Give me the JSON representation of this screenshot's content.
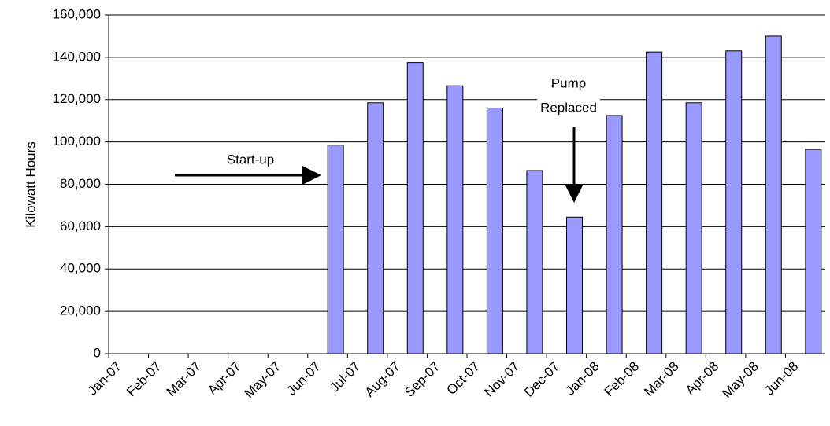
{
  "chart_data": {
    "type": "bar",
    "y_label": "Kilowatt Hours",
    "categories": [
      "Jan-07",
      "Feb-07",
      "Mar-07",
      "Apr-07",
      "May-07",
      "Jun-07",
      "Jul-07",
      "Aug-07",
      "Sep-07",
      "Oct-07",
      "Nov-07",
      "Dec-07",
      "Jan-08",
      "Feb-08",
      "Mar-08",
      "Apr-08",
      "May-08",
      "Jun-08"
    ],
    "values": [
      null,
      null,
      null,
      null,
      null,
      98500,
      118500,
      137500,
      126500,
      116000,
      86500,
      64500,
      112500,
      142500,
      118500,
      143000,
      150000,
      96500
    ],
    "color": "#9999ff",
    "ylim": [
      0,
      160000
    ],
    "yticks": [
      0,
      {
        "value": 20000,
        "label": "20,000"
      },
      {
        "value": 40000,
        "label": "40,000"
      },
      {
        "value": 60000,
        "label": "60,000"
      },
      {
        "value": 80000,
        "label": "80,000"
      },
      {
        "value": 100000,
        "label": "100,000"
      },
      {
        "value": 120000,
        "label": "120,000"
      },
      {
        "value": 140000,
        "label": "140,000"
      },
      {
        "value": 160000,
        "label": "160,000"
      }
    ],
    "grid": true,
    "annotations": [
      [
        "Start-up"
      ],
      [
        "Pump",
        "Replaced"
      ]
    ]
  }
}
